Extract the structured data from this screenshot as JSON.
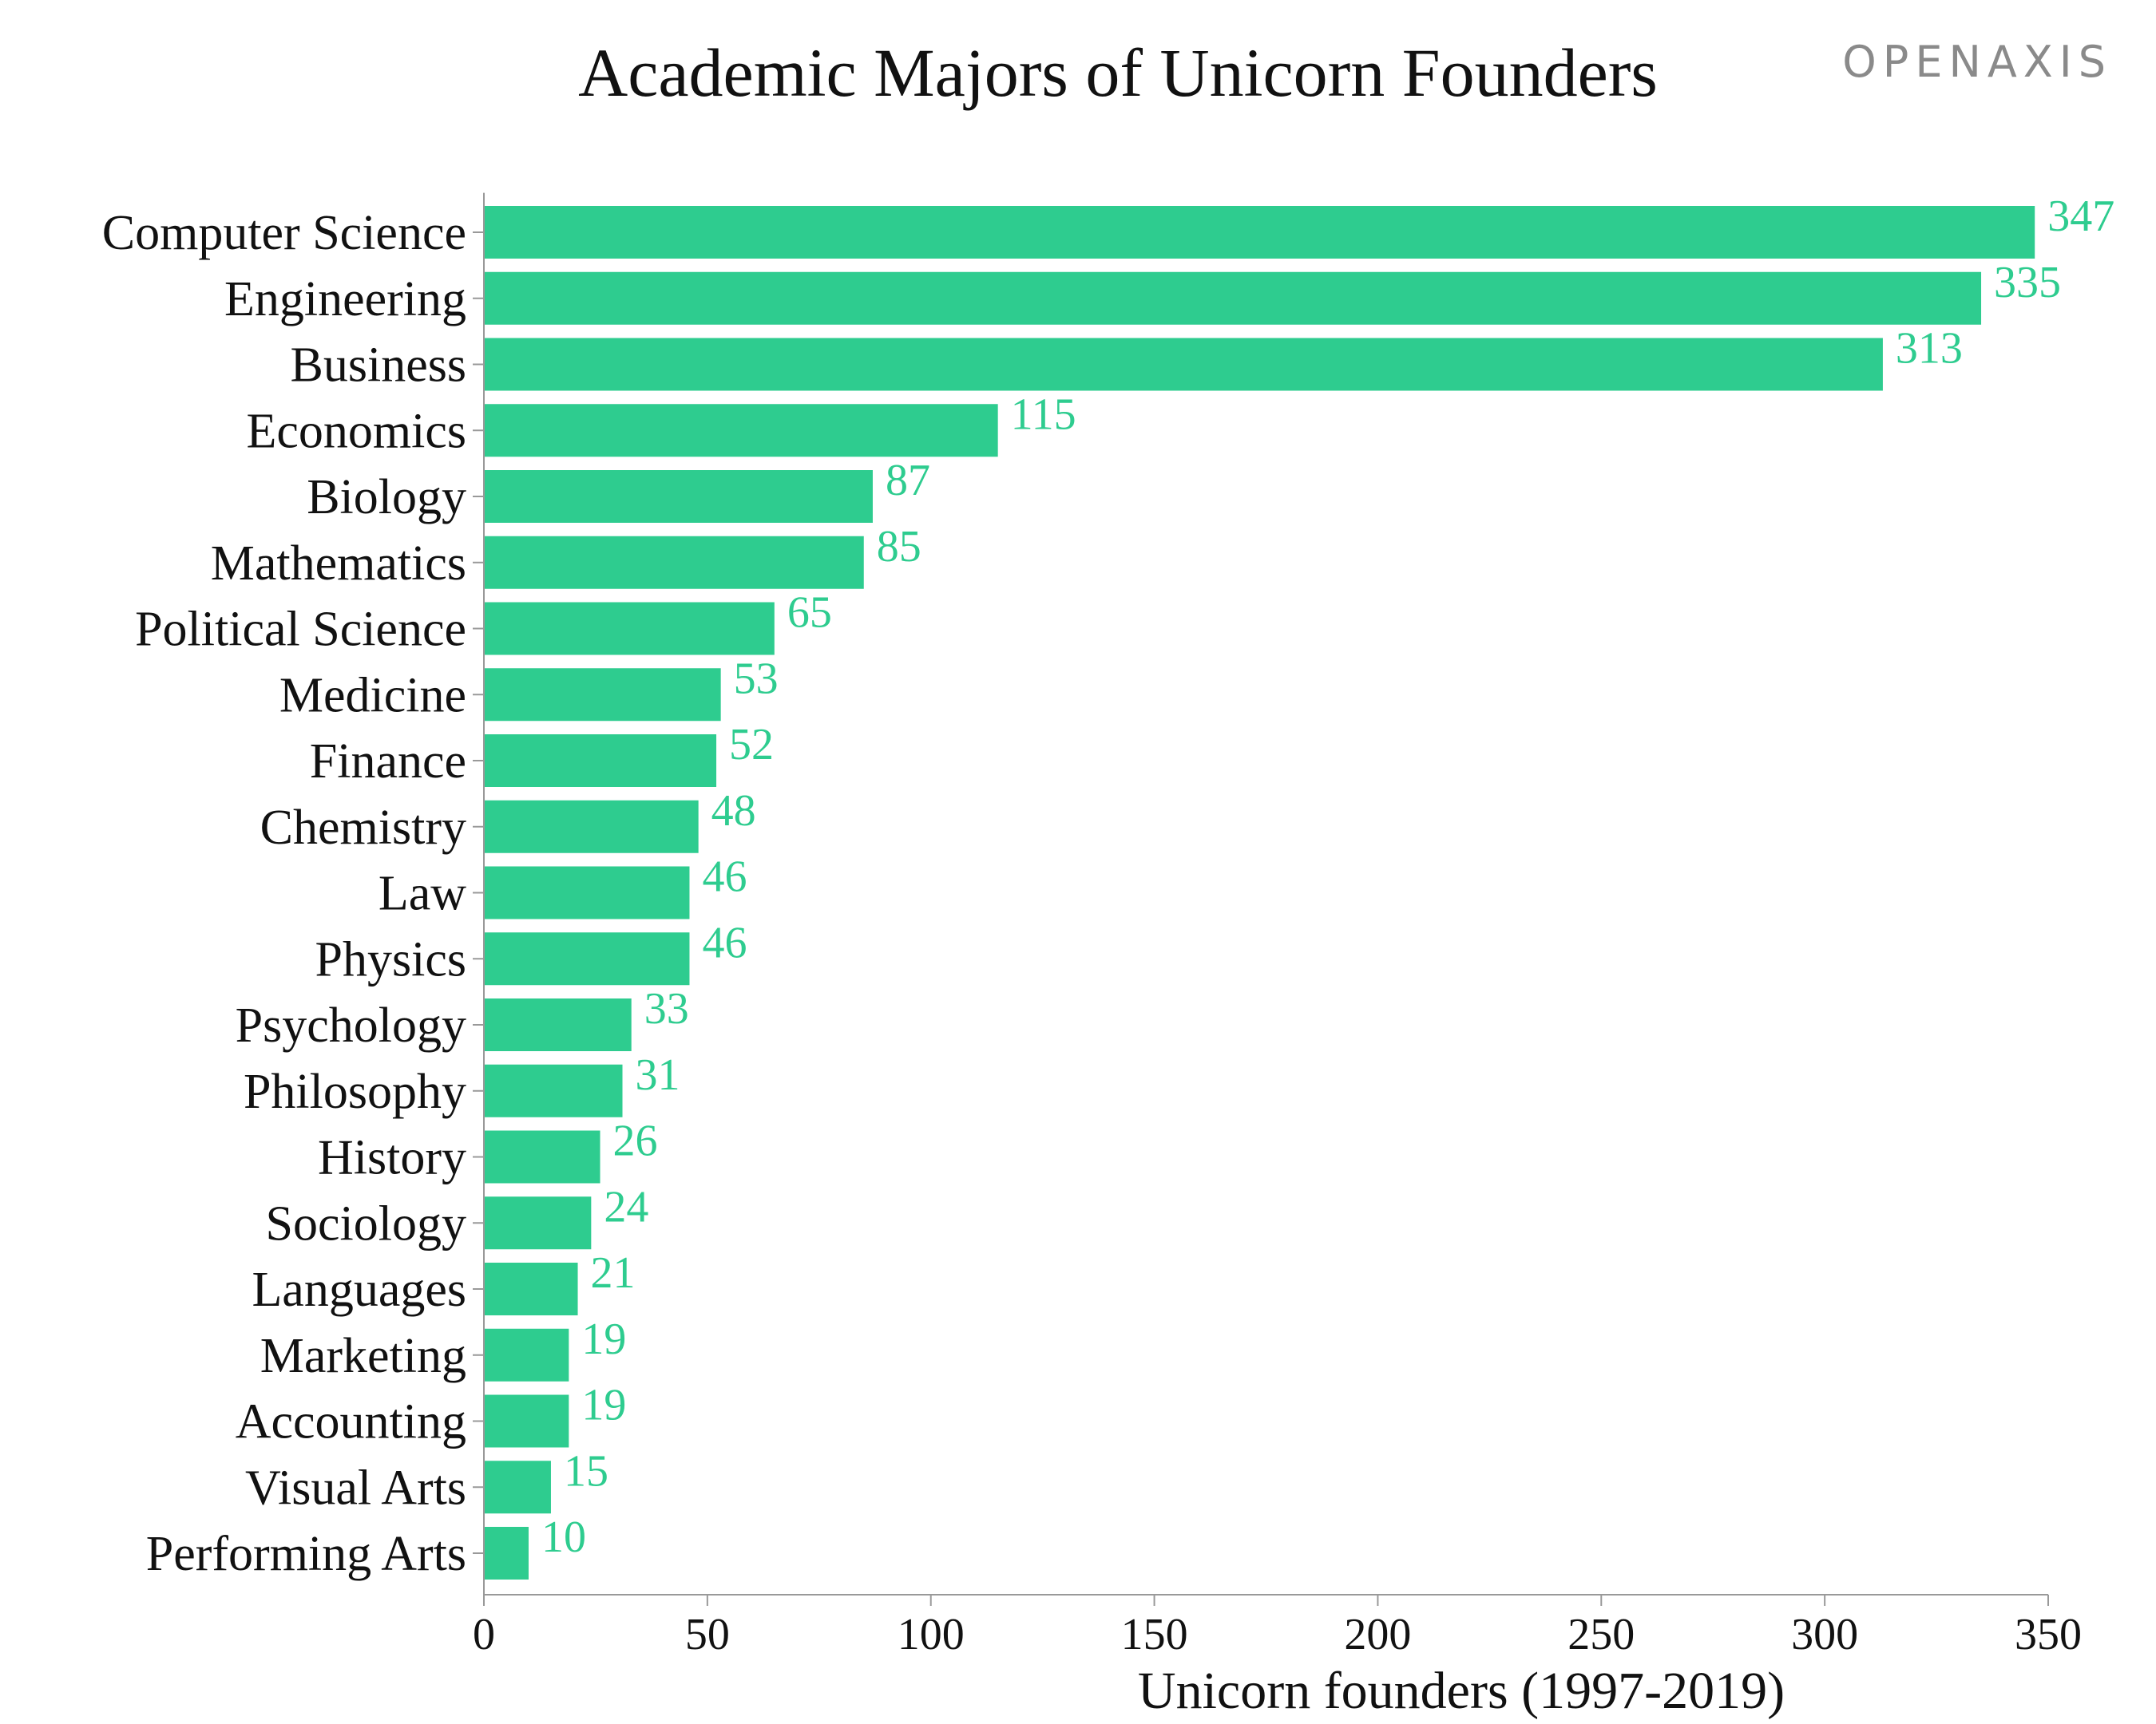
{
  "brand": "OPENAXIS",
  "colors": {
    "bar": "#2ECC8F",
    "value_label": "#2ECC8F",
    "text": "#111111",
    "axis": "#999999",
    "brand": "#8a8a8a"
  },
  "chart_data": {
    "type": "bar",
    "orientation": "horizontal",
    "title": "Academic Majors of Unicorn Founders",
    "xlabel": "Unicorn founders (1997-2019)",
    "ylabel": "",
    "xlim": [
      0,
      350
    ],
    "xticks": [
      "0",
      "50",
      "100",
      "150",
      "200",
      "250",
      "300",
      "350"
    ],
    "grid": false,
    "legend": "none",
    "categories": [
      "Computer Science",
      "Engineering",
      "Business",
      "Economics",
      "Biology",
      "Mathematics",
      "Political Science",
      "Medicine",
      "Finance",
      "Chemistry",
      "Law",
      "Physics",
      "Psychology",
      "Philosophy",
      "History",
      "Sociology",
      "Languages",
      "Marketing",
      "Accounting",
      "Visual Arts",
      "Performing Arts"
    ],
    "values": [
      347,
      335,
      313,
      115,
      87,
      85,
      65,
      53,
      52,
      48,
      46,
      46,
      33,
      31,
      26,
      24,
      21,
      19,
      19,
      15,
      10
    ]
  }
}
